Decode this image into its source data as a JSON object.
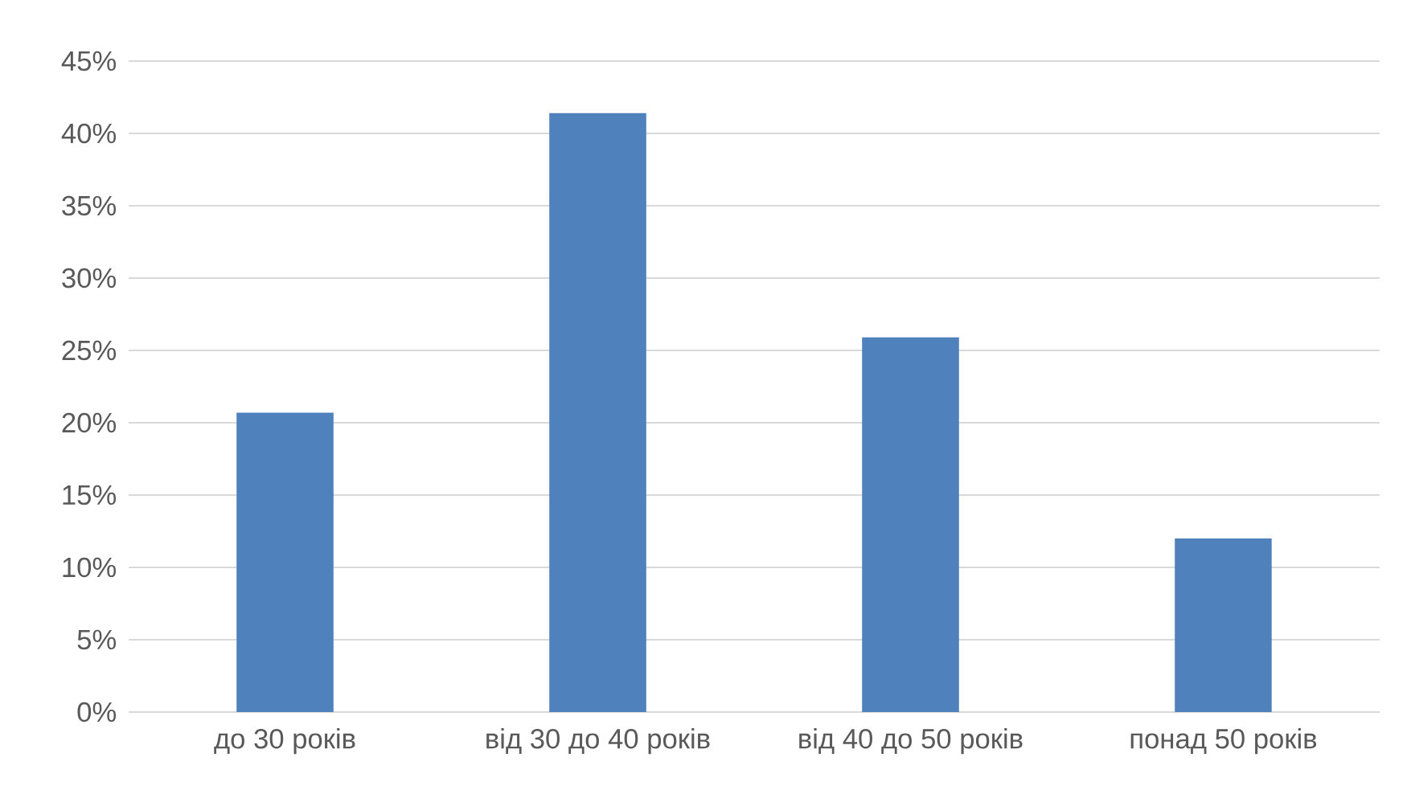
{
  "chart_data": {
    "type": "bar",
    "categories": [
      "до 30 років",
      "від 30 до 40 років",
      "від 40 до 50 років",
      "понад 50 років"
    ],
    "values": [
      20.7,
      41.4,
      25.9,
      12.0
    ],
    "color": "#4f81bd",
    "ylim": [
      0,
      45
    ],
    "yticks": [
      {
        "value": 0,
        "label": "0%"
      },
      {
        "value": 5,
        "label": "5%"
      },
      {
        "value": 10,
        "label": "10%"
      },
      {
        "value": 15,
        "label": "15%"
      },
      {
        "value": 20,
        "label": "20%"
      },
      {
        "value": 25,
        "label": "25%"
      },
      {
        "value": 30,
        "label": "30%"
      },
      {
        "value": 35,
        "label": "35%"
      },
      {
        "value": 40,
        "label": "40%"
      },
      {
        "value": 45,
        "label": "45%"
      }
    ],
    "grid": "y"
  }
}
